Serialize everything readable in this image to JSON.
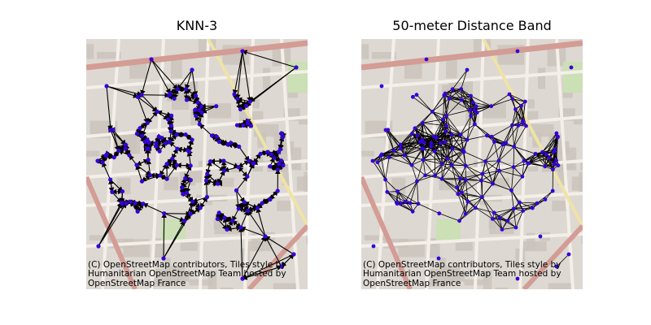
{
  "figure": {
    "panels": [
      {
        "title": "KNN-3",
        "attribution": "(C) OpenStreetMap contributors, Tiles style by\nHumanitarian OpenStreetMap Team hosted by\nOpenStreetMap France",
        "graph_type": "knn-3",
        "directed": true
      },
      {
        "title": "50-meter Distance Band",
        "attribution": "(C) OpenStreetMap contributors, Tiles style by\nHumanitarian OpenStreetMap Team hosted by\nOpenStreetMap France",
        "graph_type": "distance-band",
        "directed": false
      }
    ],
    "colors": {
      "node": "#3700d6",
      "edge": "#000000",
      "road_major": "#d39c95",
      "road_minor": "#f4efe9",
      "road_secondary": "#efe3a6",
      "building": "#c9c3bc",
      "park": "#cbe0b5",
      "background": "#ddd8d2"
    }
  }
}
